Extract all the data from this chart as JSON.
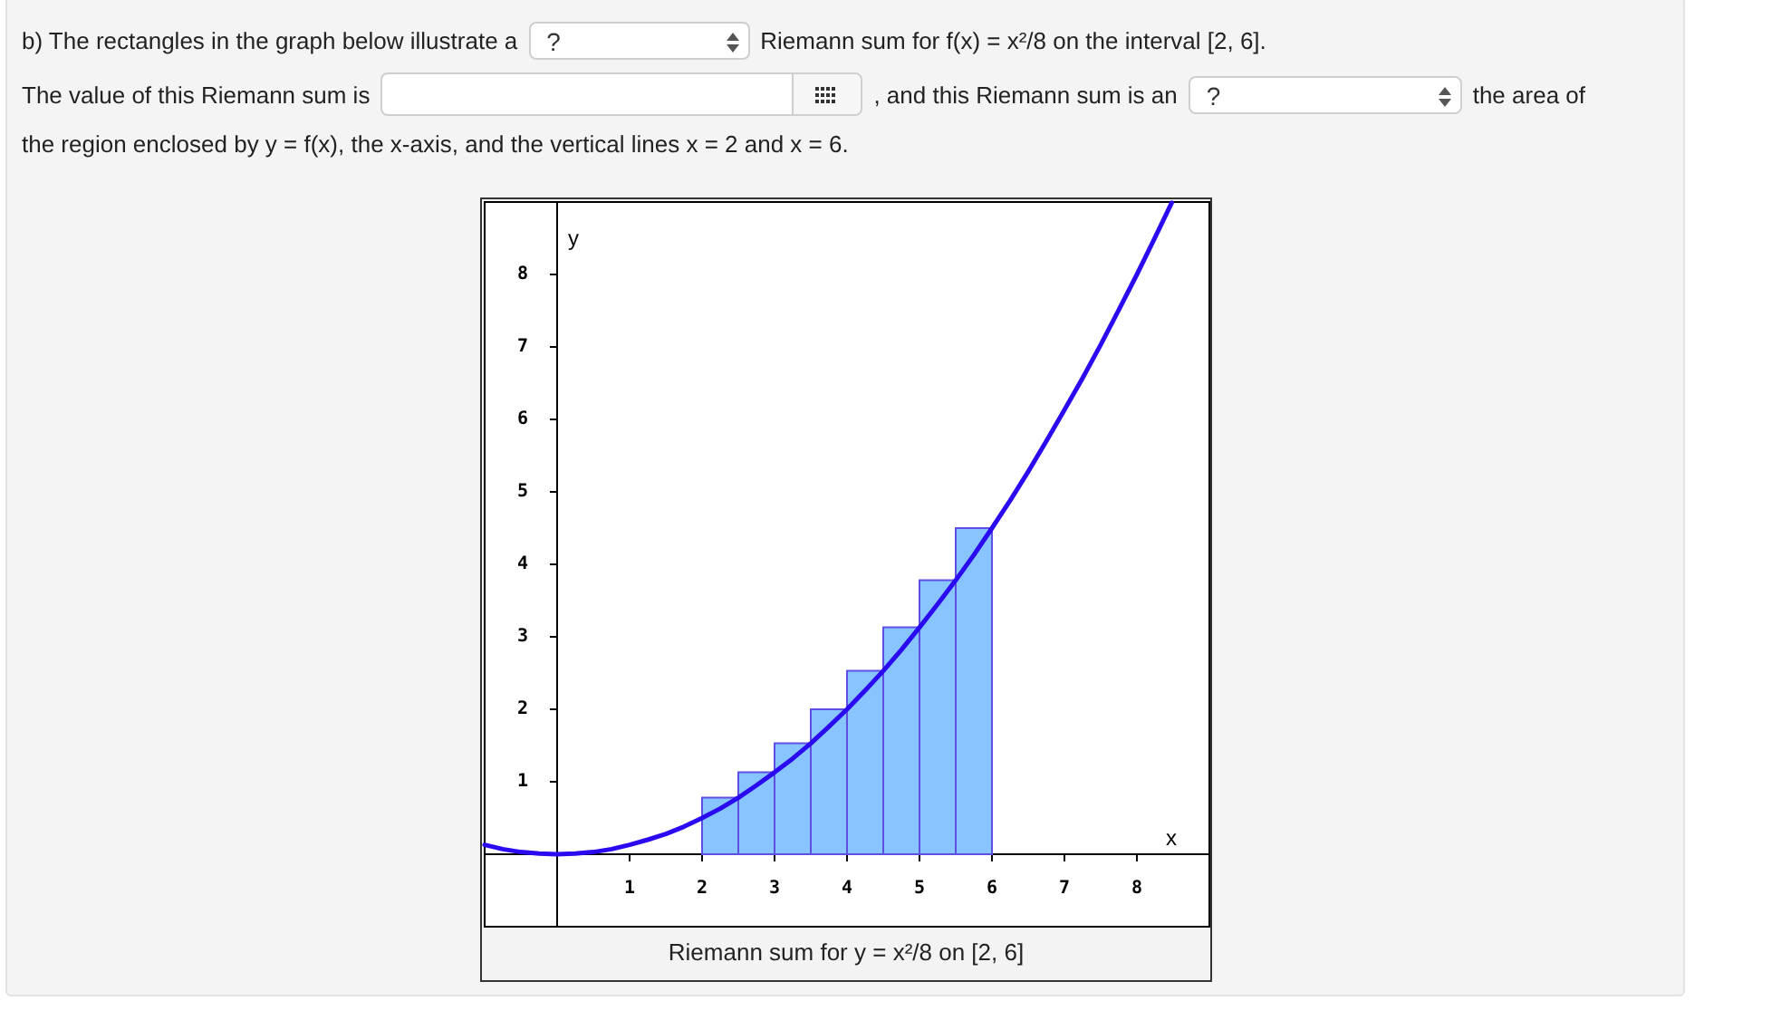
{
  "chart_data": {
    "type": "histogram",
    "title": "Riemann sum for y = x²/8 on [2, 6]",
    "xlabel": "x",
    "ylabel": "y",
    "annotations": [
      "b) The rectangles in the graph below illustrate a",
      "?",
      "Riemann sum for f(x) = x²/8 on the interval [2, 6].",
      "The value of this Riemann sum is",
      ", and this Riemann sum is an",
      "?",
      "the area of",
      "the region enclosed by y = f(x), the x-axis, and the vertical lines x = 2 and x = 6."
    ],
    "series": [
      {
        "color": "#88c4ff",
        "bins": [
          2,
          2.5,
          3,
          3.5,
          4,
          4.5,
          5,
          5.5,
          6
        ],
        "values": [
          0.78,
          1.13,
          1.53,
          2,
          2.53,
          3.13,
          3.78,
          4.5
        ]
      },
      {
        "type": "line",
        "color": "#2a0af0",
        "x": [
          -1,
          -0.75,
          -0.5,
          -0.25,
          0,
          0.25,
          0.5,
          0.75,
          1,
          1.25,
          1.5,
          1.75,
          2,
          2.25,
          2.5,
          2.75,
          3,
          3.25,
          3.5,
          3.75,
          4,
          4.25,
          4.5,
          4.75,
          5,
          5.25,
          5.5,
          5.75,
          6,
          6.25,
          6.5,
          6.75,
          7,
          7.25,
          7.5,
          7.75,
          8,
          8.25,
          8.48
        ],
        "values": [
          0.13,
          0.07,
          0.03,
          0.01,
          0,
          0.01,
          0.03,
          0.07,
          0.13,
          0.2,
          0.28,
          0.38,
          0.5,
          0.63,
          0.78,
          0.95,
          1.13,
          1.32,
          1.53,
          1.76,
          2,
          2.26,
          2.53,
          2.82,
          3.13,
          3.45,
          3.78,
          4.13,
          4.5,
          4.88,
          5.28,
          5.7,
          6.13,
          6.57,
          7.03,
          7.51,
          8,
          8.51,
          8.99
        ]
      }
    ],
    "xlim": [
      -1,
      9
    ],
    "ylim": [
      -1,
      9
    ],
    "xticks": [
      1,
      2,
      3,
      4,
      5,
      6,
      7,
      8
    ],
    "yticks": [
      1,
      2,
      3,
      4,
      5,
      6,
      7,
      8
    ],
    "grid": false,
    "marker": "none"
  }
}
